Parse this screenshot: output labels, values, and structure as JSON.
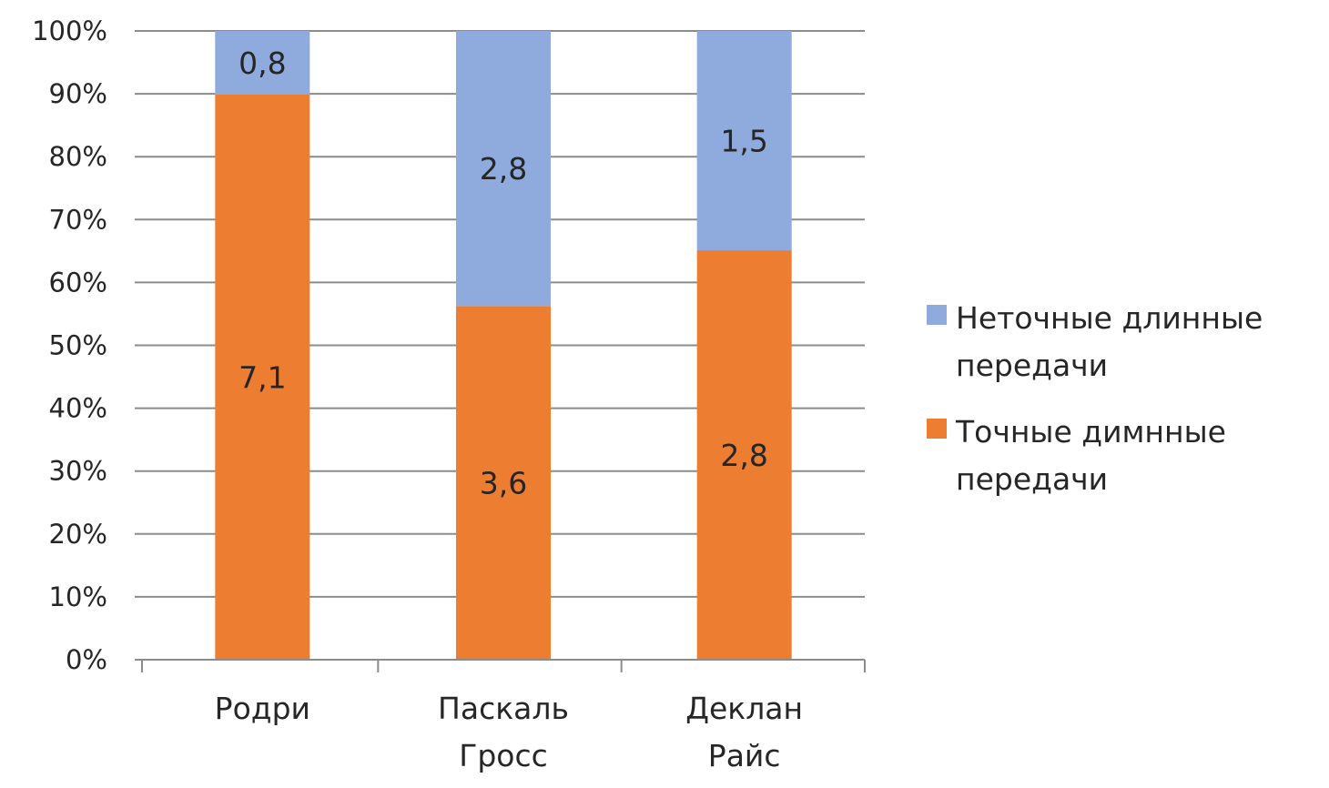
{
  "chart_data": {
    "type": "bar",
    "stacked": true,
    "percent_stacked": true,
    "categories": [
      [
        "Родри"
      ],
      [
        "Паскаль",
        "Гросс"
      ],
      [
        "Деклан",
        "Райс"
      ]
    ],
    "series": [
      {
        "name": [
          "Точные димнные",
          "передачи"
        ],
        "values": [
          7.1,
          3.6,
          2.8
        ],
        "labels": [
          "7,1",
          "3,6",
          "2,8"
        ],
        "color": "#ED7D31"
      },
      {
        "name": [
          "Неточные длинные",
          "передачи"
        ],
        "values": [
          0.8,
          2.8,
          1.5
        ],
        "labels": [
          "0,8",
          "2,8",
          "1,5"
        ],
        "color": "#8FAADC"
      }
    ],
    "y_ticks": [
      "0%",
      "10%",
      "20%",
      "30%",
      "40%",
      "50%",
      "60%",
      "70%",
      "80%",
      "90%",
      "100%"
    ],
    "ylim": [
      0,
      100
    ],
    "grid": true,
    "legend": "right",
    "legend_order": [
      1,
      0
    ]
  }
}
